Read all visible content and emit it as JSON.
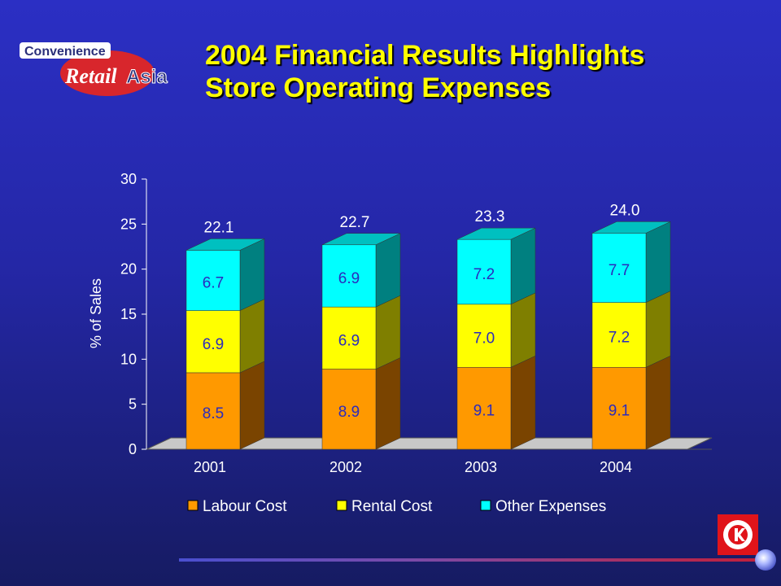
{
  "header": {
    "title_line1": "2004 Financial Results Highlights",
    "title_line2": "Store Operating Expenses"
  },
  "logo": {
    "word_top": "Convenience",
    "word_main": "Retail",
    "word_side": "Asia",
    "colors": {
      "ellipse": "#d8262c",
      "text_top": "#2a2f7a",
      "text_main": "#ffffff",
      "text_side": "#2a2f7a"
    }
  },
  "corner_logo": {
    "name": "circle-k-logo",
    "colors": {
      "frame": "#e0141a",
      "inner": "#ffffff"
    }
  },
  "chart_data": {
    "type": "bar",
    "stacked": true,
    "categories": [
      "2001",
      "2002",
      "2003",
      "2004"
    ],
    "series": [
      {
        "name": "Labour Cost",
        "values": [
          8.5,
          8.9,
          9.1,
          9.1
        ],
        "color": "#ff9900",
        "side": "#7a4400",
        "top": "#b96e00"
      },
      {
        "name": "Rental Cost",
        "values": [
          6.9,
          6.9,
          7.0,
          7.2
        ],
        "color": "#ffff00",
        "side": "#7f7f00",
        "top": "#c2c200"
      },
      {
        "name": "Other Expenses",
        "values": [
          6.7,
          6.9,
          7.2,
          7.7
        ],
        "color": "#00ffff",
        "side": "#008080",
        "top": "#00c0c0"
      }
    ],
    "series_label_texts": [
      [
        "8.5",
        "8.9",
        "9.1",
        "9.1"
      ],
      [
        "6.9",
        "6.9",
        "7.0",
        "7.2"
      ],
      [
        "6.7",
        "6.9",
        "7.2",
        "7.7"
      ]
    ],
    "totals": [
      "22.1",
      "22.7",
      "23.3",
      "24.0"
    ],
    "ylabel": "% of Sales",
    "ylim": [
      0,
      30
    ],
    "yticks": [
      "0",
      "5",
      "10",
      "15",
      "20",
      "25",
      "30"
    ],
    "yticks_values": [
      0,
      5,
      10,
      15,
      20,
      25,
      30
    ],
    "grid": false,
    "legend_position": "bottom",
    "colors": {
      "text": "#ffffff",
      "data_label": "#2b2bbd",
      "floor": "#c8c8c8",
      "axis": "#ffffff"
    }
  }
}
